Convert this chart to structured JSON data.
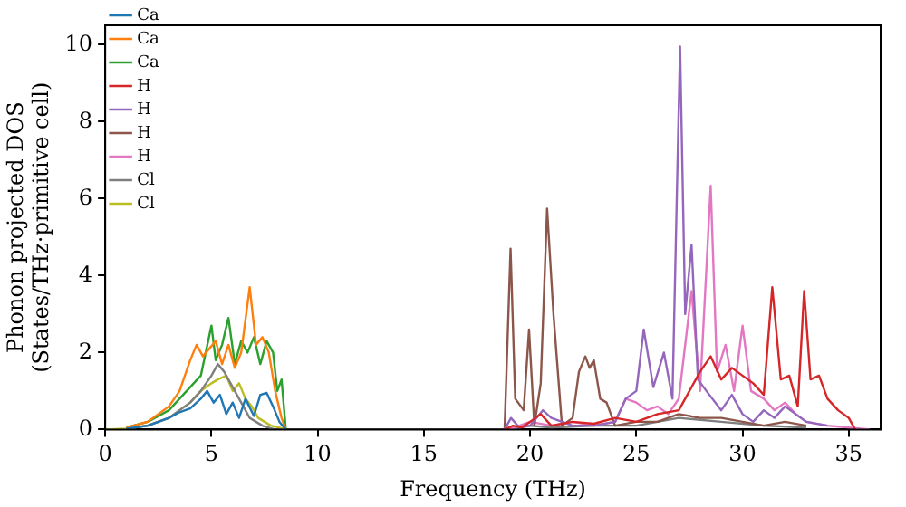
{
  "chart_data": {
    "type": "line",
    "xlabel": "Frequency (THz)",
    "ylabel": "Phonon projected DOS\n(States/THz·primitive cell)",
    "xlim": [
      0,
      36.5
    ],
    "xticks": [
      0,
      5,
      10,
      15,
      20,
      25,
      30,
      35
    ],
    "ylim": [
      0,
      10.5
    ],
    "yticks": [
      0,
      2,
      4,
      6,
      8,
      10
    ],
    "legend": "top left",
    "grid": false,
    "marker": "none",
    "line_style": "solid",
    "series": [
      {
        "name": "Ca",
        "color": "#1f77b4",
        "x": [
          1,
          2,
          3,
          3.5,
          4,
          4.5,
          4.8,
          5.1,
          5.4,
          5.7,
          6,
          6.3,
          6.6,
          7,
          7.3,
          7.6,
          7.9,
          8.2,
          8.5
        ],
        "values": [
          0.02,
          0.1,
          0.3,
          0.45,
          0.55,
          0.8,
          1.0,
          0.7,
          0.9,
          0.4,
          0.7,
          0.3,
          0.8,
          0.35,
          0.9,
          0.95,
          0.6,
          0.2,
          0
        ]
      },
      {
        "name": "Ca",
        "color": "#ff7f0e",
        "x": [
          1,
          2,
          3,
          3.5,
          4,
          4.3,
          4.6,
          4.9,
          5.2,
          5.5,
          5.8,
          6.1,
          6.4,
          6.8,
          7.1,
          7.4,
          7.7,
          8,
          8.3,
          8.5
        ],
        "values": [
          0.05,
          0.2,
          0.6,
          1.0,
          1.8,
          2.2,
          1.9,
          2.1,
          2.3,
          1.7,
          2.2,
          1.6,
          2.0,
          3.7,
          2.2,
          2.4,
          2.0,
          1.0,
          0.3,
          0
        ]
      },
      {
        "name": "Ca",
        "color": "#2ca02c",
        "x": [
          1,
          2,
          3,
          3.5,
          4,
          4.5,
          5,
          5.2,
          5.5,
          5.8,
          6.1,
          6.4,
          6.7,
          7,
          7.3,
          7.6,
          7.9,
          8.1,
          8.3,
          8.5
        ],
        "values": [
          0.05,
          0.2,
          0.5,
          0.8,
          1.1,
          1.4,
          2.7,
          1.8,
          2.2,
          2.9,
          1.7,
          2.3,
          2.0,
          2.4,
          1.7,
          2.3,
          2.0,
          1.0,
          1.3,
          0
        ]
      },
      {
        "name": "H",
        "color": "#d62728",
        "x": [
          18.8,
          19.2,
          19.6,
          20,
          20.5,
          21,
          22,
          23,
          24,
          25,
          26,
          27,
          27.5,
          28,
          28.5,
          29,
          29.5,
          30,
          30.5,
          31,
          31.4,
          31.8,
          32.2,
          32.6,
          32.9,
          33.2,
          33.6,
          34,
          34.5,
          35,
          35.3
        ],
        "values": [
          0,
          0.1,
          0.05,
          0.2,
          0.4,
          0.1,
          0.2,
          0.15,
          0.3,
          0.2,
          0.4,
          0.5,
          1.0,
          1.5,
          1.9,
          1.3,
          1.6,
          1.4,
          1.2,
          0.9,
          3.7,
          1.3,
          1.4,
          0.6,
          3.6,
          1.3,
          1.4,
          0.8,
          0.5,
          0.3,
          0
        ]
      },
      {
        "name": "H",
        "color": "#9467bd",
        "x": [
          18.8,
          19.1,
          19.5,
          20,
          20.6,
          21,
          21.5,
          22,
          23,
          24,
          24.5,
          25,
          25.35,
          25.8,
          26.3,
          26.7,
          27.06,
          27.3,
          27.6,
          27.9,
          28.3,
          29,
          29.5,
          30,
          30.5,
          31,
          31.5,
          32,
          33,
          34
        ],
        "values": [
          0,
          0.3,
          0.05,
          0.1,
          0.5,
          0.3,
          0.2,
          0.1,
          0.1,
          0.2,
          0.8,
          1.0,
          2.6,
          1.1,
          2.0,
          0.8,
          9.95,
          3.0,
          4.8,
          1.3,
          1.0,
          0.5,
          0.9,
          0.4,
          0.2,
          0.5,
          0.3,
          0.6,
          0.2,
          0.1
        ]
      },
      {
        "name": "H",
        "color": "#8c564b",
        "x": [
          18.8,
          19.08,
          19.3,
          19.7,
          19.95,
          20.2,
          20.5,
          20.8,
          21.1,
          21.5,
          22,
          22.3,
          22.6,
          22.8,
          23,
          23.3,
          23.6,
          24,
          25,
          26,
          27,
          28,
          29,
          30,
          31,
          32,
          33
        ],
        "values": [
          0,
          4.7,
          0.8,
          0.5,
          2.6,
          0.1,
          1.2,
          5.74,
          3.0,
          0.1,
          0.3,
          1.5,
          1.9,
          1.6,
          1.8,
          0.8,
          0.7,
          0.1,
          0.2,
          0.2,
          0.4,
          0.3,
          0.3,
          0.2,
          0.1,
          0.2,
          0.1
        ]
      },
      {
        "name": "H",
        "color": "#e377c2",
        "x": [
          19,
          20,
          21,
          22,
          23,
          24,
          24.5,
          25,
          25.5,
          26,
          26.5,
          27,
          27.6,
          28,
          28.5,
          28.8,
          29.2,
          29.6,
          30,
          30.4,
          31,
          31.5,
          32,
          32.5,
          33,
          34,
          35,
          36
        ],
        "values": [
          0,
          0.2,
          0.1,
          0.2,
          0.1,
          0.2,
          0.8,
          0.7,
          0.5,
          0.6,
          0.4,
          0.8,
          3.6,
          1.0,
          6.33,
          1.5,
          2.2,
          1.0,
          2.7,
          1.0,
          0.8,
          0.5,
          0.7,
          0.4,
          0.2,
          0.1,
          0.05,
          0
        ]
      },
      {
        "name": "Cl",
        "color": "#7f7f7f",
        "x": [
          1,
          2,
          3,
          3.5,
          4,
          4.5,
          5,
          5.3,
          5.6,
          5.9,
          6.2,
          6.5,
          6.8,
          7.1,
          7.4,
          7.7,
          8,
          8.5,
          19,
          20,
          21,
          23,
          25,
          27,
          29,
          31,
          33
        ],
        "values": [
          0.02,
          0.1,
          0.3,
          0.5,
          0.7,
          1.0,
          1.4,
          1.7,
          1.5,
          1.2,
          0.9,
          0.6,
          0.3,
          0.2,
          0.1,
          0.05,
          0,
          0,
          0,
          0.1,
          0.05,
          0.1,
          0.1,
          0.3,
          0.2,
          0.1,
          0.05
        ]
      },
      {
        "name": "Cl",
        "color": "#bcbd22",
        "x": [
          0,
          1,
          2,
          3,
          3.5,
          4,
          4.5,
          5,
          5.3,
          5.7,
          6,
          6.3,
          6.6,
          6.9,
          7.2,
          7.5,
          7.8,
          8.2,
          8.5
        ],
        "values": [
          0,
          0.02,
          0.1,
          0.3,
          0.5,
          0.7,
          1.0,
          1.2,
          1.3,
          1.4,
          1.0,
          1.2,
          0.8,
          0.6,
          0.3,
          0.2,
          0.1,
          0.05,
          0
        ]
      }
    ]
  }
}
